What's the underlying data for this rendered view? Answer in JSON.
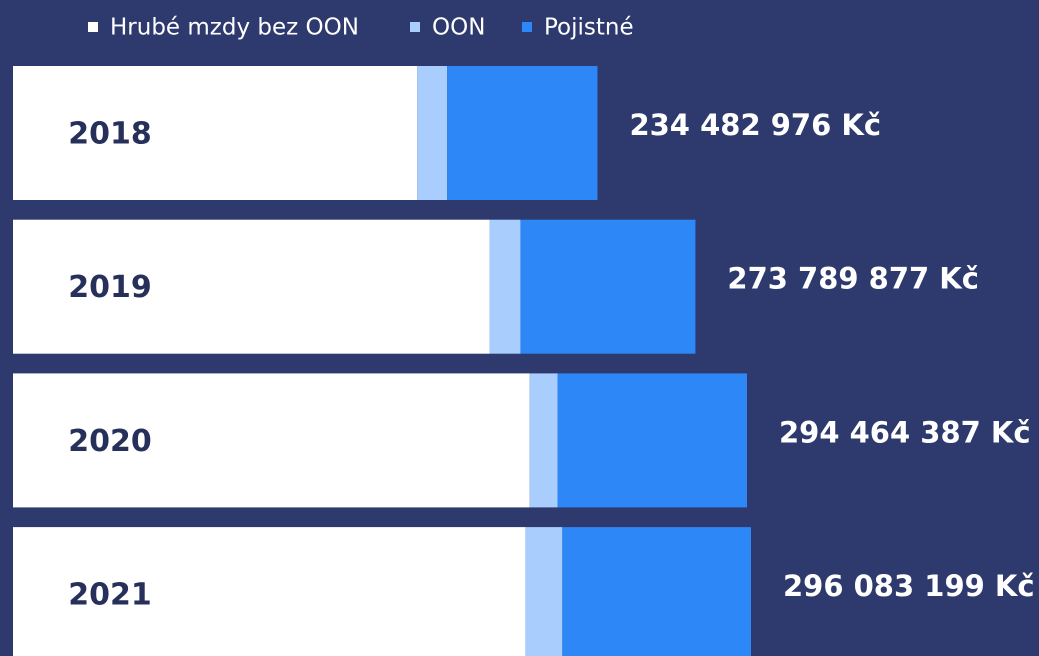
{
  "chart_data": {
    "type": "stacked-barh",
    "categories": [
      "2018",
      "2019",
      "2020",
      "2021"
    ],
    "series": [
      {
        "name": "Hrubé mzdy bez OON",
        "color": "#ffffff",
        "values": [
          162200000,
          191200000,
          207300000,
          205600000
        ]
      },
      {
        "name": "OON",
        "color": "#a9cdfc",
        "values": [
          12000000,
          12400000,
          11200000,
          14800000
        ]
      },
      {
        "name": "Pojistné",
        "color": "#2d87f6",
        "values": [
          60300000,
          70200000,
          76000000,
          75700000
        ]
      }
    ],
    "totals": {
      "values": [
        234482976,
        273789877,
        294464387,
        296083199
      ],
      "value_labels": [
        "234 482 976 Kč",
        "273 789 877 Kč",
        "294 464 387 Kč",
        "296 083 199 Kč"
      ]
    }
  }
}
